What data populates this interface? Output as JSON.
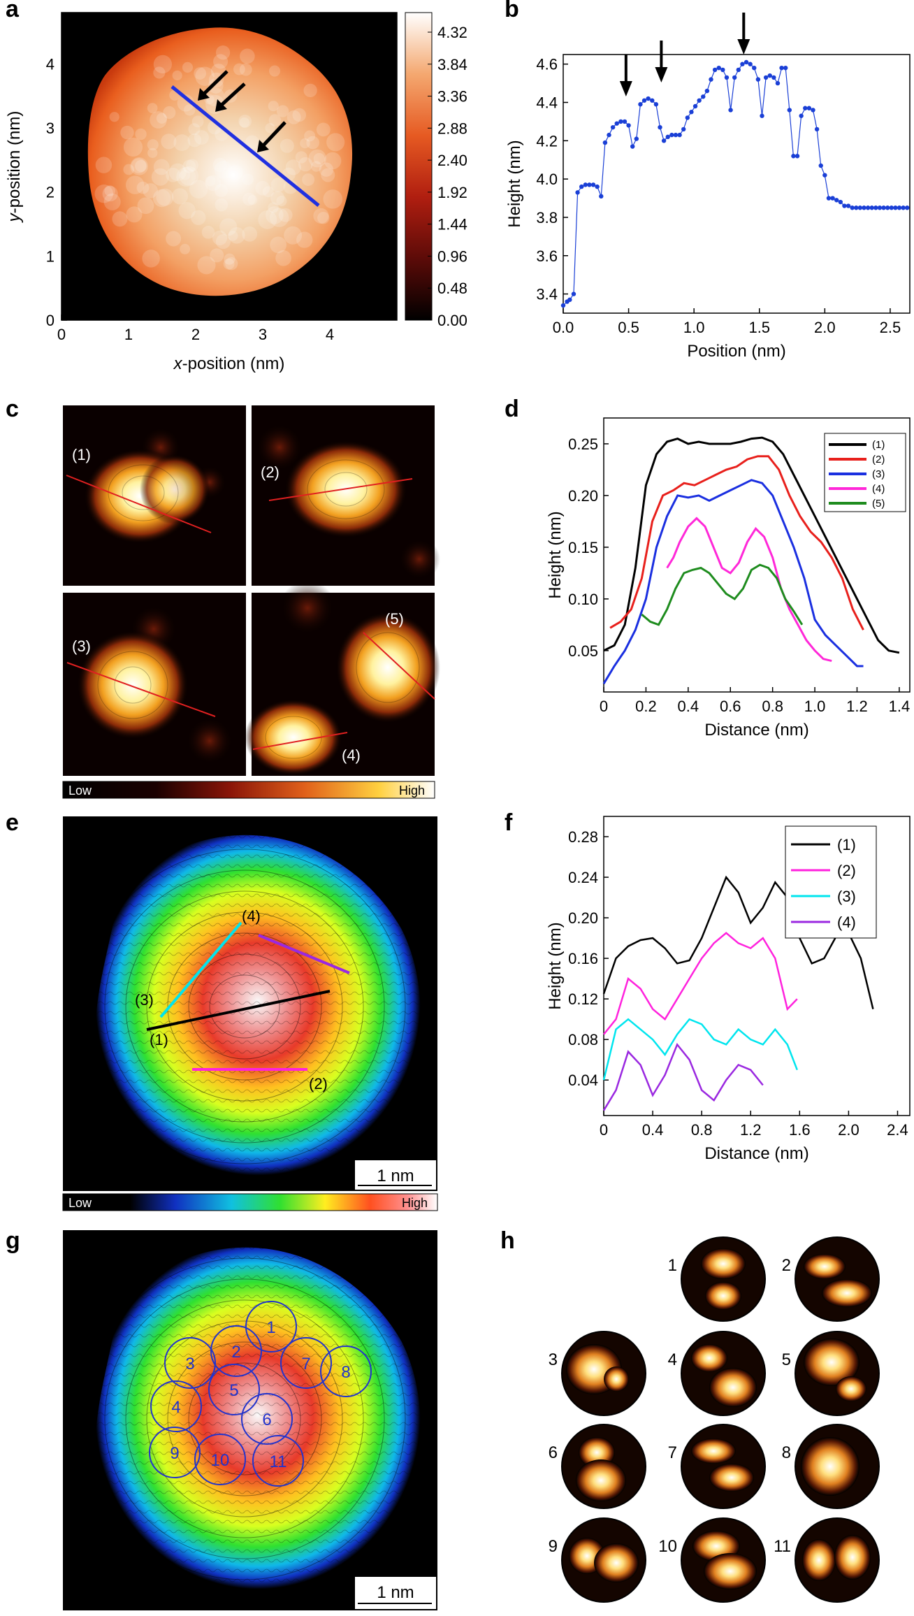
{
  "panels": {
    "a": {
      "label": "a",
      "xlabel_italic": "x",
      "xlabel_rest": "-position (nm)",
      "ylabel_italic": "y",
      "ylabel_rest": "-position (nm)",
      "xticks": [
        "0",
        "1",
        "2",
        "3",
        "4"
      ],
      "yticks": [
        "0",
        "1",
        "2",
        "3",
        "4"
      ],
      "colorbar_ticks": [
        "4.32",
        "3.84",
        "3.36",
        "2.88",
        "2.40",
        "1.92",
        "1.44",
        "0.96",
        "0.48",
        "0.00"
      ]
    },
    "b": {
      "label": "b"
    },
    "c": {
      "label": "c",
      "line_labels": [
        "(1)",
        "(2)",
        "(3)",
        "(5)",
        "(4)"
      ],
      "colorbar_low": "Low",
      "colorbar_high": "High"
    },
    "d": {
      "label": "d"
    },
    "e": {
      "label": "e",
      "line_labels": [
        "(4)",
        "(3)",
        "(1)",
        "(2)"
      ],
      "scalebar": "1 nm",
      "colorbar_low": "Low",
      "colorbar_high": "High"
    },
    "f": {
      "label": "f"
    },
    "g": {
      "label": "g",
      "circle_labels": [
        "1",
        "2",
        "3",
        "4",
        "5",
        "6",
        "7",
        "8",
        "9",
        "10",
        "11"
      ],
      "scalebar": "1 nm"
    },
    "h": {
      "label": "h",
      "numbers": [
        "1",
        "2",
        "3",
        "4",
        "5",
        "6",
        "7",
        "8",
        "9",
        "10",
        "11"
      ]
    }
  },
  "colors": {
    "panel_b_line": "#1a3fd6",
    "panel_a_profile": "#2030e0",
    "panel_c_profile": "#e02020",
    "panel_g_circles": "#2233cc"
  },
  "chart_data": [
    {
      "id": "b",
      "type": "line",
      "xlabel": "Position (nm)",
      "ylabel": "Height (nm)",
      "xlim": [
        0,
        2.65
      ],
      "ylim": [
        3.3,
        4.65
      ],
      "xticks": [
        "0.0",
        "0.5",
        "1.0",
        "1.5",
        "2.0",
        "2.5"
      ],
      "yticks": [
        "3.4",
        "3.6",
        "3.8",
        "4.0",
        "4.2",
        "4.4",
        "4.6"
      ],
      "arrows_at_x": [
        0.48,
        0.75,
        1.38
      ],
      "series": [
        {
          "x": [
            0.0,
            0.03,
            0.05,
            0.08,
            0.11,
            0.14,
            0.17,
            0.2,
            0.23,
            0.26,
            0.29,
            0.32,
            0.35,
            0.38,
            0.41,
            0.44,
            0.47,
            0.5,
            0.53,
            0.56,
            0.59,
            0.62,
            0.65,
            0.68,
            0.71,
            0.74,
            0.77,
            0.8,
            0.83,
            0.86,
            0.89,
            0.92,
            0.95,
            0.98,
            1.01,
            1.04,
            1.07,
            1.1,
            1.13,
            1.16,
            1.19,
            1.22,
            1.25,
            1.28,
            1.31,
            1.34,
            1.37,
            1.4,
            1.43,
            1.46,
            1.49,
            1.52,
            1.55,
            1.58,
            1.61,
            1.64,
            1.67,
            1.7,
            1.73,
            1.76,
            1.79,
            1.82,
            1.85,
            1.88,
            1.91,
            1.94,
            1.97,
            2.0,
            2.03,
            2.06,
            2.09,
            2.12,
            2.15,
            2.18,
            2.21,
            2.24,
            2.27,
            2.3,
            2.33,
            2.36,
            2.39,
            2.42,
            2.45,
            2.48,
            2.51,
            2.54,
            2.57,
            2.6,
            2.63
          ],
          "y": [
            3.34,
            3.36,
            3.37,
            3.4,
            3.93,
            3.96,
            3.97,
            3.97,
            3.97,
            3.96,
            3.91,
            4.19,
            4.23,
            4.27,
            4.29,
            4.3,
            4.3,
            4.28,
            4.17,
            4.21,
            4.39,
            4.41,
            4.42,
            4.41,
            4.39,
            4.27,
            4.2,
            4.22,
            4.23,
            4.23,
            4.23,
            4.26,
            4.32,
            4.35,
            4.38,
            4.41,
            4.43,
            4.46,
            4.52,
            4.57,
            4.58,
            4.57,
            4.53,
            4.36,
            4.53,
            4.57,
            4.6,
            4.61,
            4.6,
            4.58,
            4.52,
            4.33,
            4.53,
            4.54,
            4.53,
            4.5,
            4.58,
            4.58,
            4.36,
            4.12,
            4.12,
            4.33,
            4.37,
            4.37,
            4.36,
            4.26,
            4.07,
            4.02,
            3.9,
            3.9,
            3.89,
            3.88,
            3.86,
            3.86,
            3.85,
            3.85,
            3.85,
            3.85,
            3.85,
            3.85,
            3.85,
            3.85,
            3.85,
            3.85,
            3.85,
            3.85,
            3.85,
            3.85,
            3.85
          ]
        }
      ]
    },
    {
      "id": "d",
      "type": "line",
      "xlabel": "Distance (nm)",
      "ylabel": "Height (nm)",
      "xlim": [
        0,
        1.45
      ],
      "ylim": [
        0.01,
        0.275
      ],
      "xticks": [
        "0",
        "0.2",
        "0.4",
        "0.6",
        "0.8",
        "1.0",
        "1.2",
        "1.4"
      ],
      "yticks": [
        "0.05",
        "0.10",
        "0.15",
        "0.20",
        "0.25"
      ],
      "series": [
        {
          "name": "(1)",
          "color": "#000000",
          "x": [
            0,
            0.05,
            0.1,
            0.15,
            0.2,
            0.25,
            0.3,
            0.35,
            0.4,
            0.45,
            0.5,
            0.55,
            0.6,
            0.65,
            0.7,
            0.75,
            0.8,
            0.85,
            0.9,
            0.95,
            1.0,
            1.05,
            1.1,
            1.15,
            1.2,
            1.25,
            1.3,
            1.35,
            1.4
          ],
          "y": [
            0.05,
            0.055,
            0.075,
            0.13,
            0.21,
            0.24,
            0.252,
            0.255,
            0.25,
            0.252,
            0.25,
            0.25,
            0.25,
            0.252,
            0.255,
            0.256,
            0.252,
            0.24,
            0.22,
            0.2,
            0.18,
            0.16,
            0.14,
            0.12,
            0.1,
            0.08,
            0.06,
            0.05,
            0.048
          ]
        },
        {
          "name": "(2)",
          "color": "#e8201c",
          "x": [
            0.03,
            0.08,
            0.13,
            0.18,
            0.23,
            0.28,
            0.33,
            0.38,
            0.43,
            0.48,
            0.53,
            0.58,
            0.63,
            0.68,
            0.73,
            0.78,
            0.83,
            0.88,
            0.93,
            0.98,
            1.03,
            1.08,
            1.13,
            1.18,
            1.23
          ],
          "y": [
            0.072,
            0.078,
            0.09,
            0.12,
            0.175,
            0.2,
            0.205,
            0.212,
            0.21,
            0.215,
            0.22,
            0.225,
            0.228,
            0.235,
            0.238,
            0.238,
            0.225,
            0.2,
            0.18,
            0.165,
            0.155,
            0.14,
            0.12,
            0.09,
            0.07
          ]
        },
        {
          "name": "(3)",
          "color": "#1a2fe0",
          "x": [
            0.0,
            0.05,
            0.1,
            0.15,
            0.2,
            0.25,
            0.3,
            0.35,
            0.4,
            0.45,
            0.5,
            0.55,
            0.6,
            0.65,
            0.7,
            0.75,
            0.8,
            0.85,
            0.9,
            0.95,
            1.0,
            1.05,
            1.1,
            1.15,
            1.2,
            1.23
          ],
          "y": [
            0.018,
            0.035,
            0.05,
            0.07,
            0.1,
            0.15,
            0.18,
            0.2,
            0.198,
            0.2,
            0.195,
            0.2,
            0.205,
            0.21,
            0.215,
            0.212,
            0.2,
            0.175,
            0.15,
            0.12,
            0.08,
            0.065,
            0.055,
            0.045,
            0.035,
            0.035
          ]
        },
        {
          "name": "(4)",
          "color": "#ff28d8",
          "x": [
            0.3,
            0.33,
            0.36,
            0.4,
            0.44,
            0.48,
            0.52,
            0.56,
            0.6,
            0.64,
            0.68,
            0.72,
            0.76,
            0.8,
            0.84,
            0.88,
            0.92,
            0.96,
            1.0,
            1.04,
            1.08
          ],
          "y": [
            0.13,
            0.14,
            0.155,
            0.17,
            0.178,
            0.17,
            0.15,
            0.13,
            0.125,
            0.135,
            0.155,
            0.168,
            0.16,
            0.14,
            0.11,
            0.09,
            0.075,
            0.06,
            0.05,
            0.042,
            0.04
          ]
        },
        {
          "name": "(5)",
          "color": "#1e8c1e",
          "x": [
            0.18,
            0.22,
            0.26,
            0.3,
            0.34,
            0.38,
            0.42,
            0.46,
            0.5,
            0.54,
            0.58,
            0.62,
            0.66,
            0.7,
            0.74,
            0.78,
            0.82,
            0.86,
            0.9,
            0.94
          ],
          "y": [
            0.085,
            0.078,
            0.075,
            0.09,
            0.11,
            0.125,
            0.128,
            0.13,
            0.125,
            0.115,
            0.105,
            0.1,
            0.11,
            0.128,
            0.133,
            0.13,
            0.12,
            0.1,
            0.088,
            0.075
          ]
        }
      ]
    },
    {
      "id": "f",
      "type": "line",
      "xlabel": "Distance (nm)",
      "ylabel": "Height (nm)",
      "xlim": [
        0,
        2.5
      ],
      "ylim": [
        0.005,
        0.3
      ],
      "xticks": [
        "0",
        "0.4",
        "0.8",
        "1.2",
        "1.6",
        "2.0",
        "2.4"
      ],
      "yticks": [
        "0.04",
        "0.08",
        "0.12",
        "0.16",
        "0.20",
        "0.24",
        "0.28"
      ],
      "series": [
        {
          "name": "(1)",
          "color": "#000000",
          "x": [
            0,
            0.1,
            0.2,
            0.3,
            0.4,
            0.5,
            0.6,
            0.7,
            0.8,
            0.9,
            1.0,
            1.1,
            1.2,
            1.3,
            1.4,
            1.5,
            1.6,
            1.7,
            1.8,
            1.9,
            2.0,
            2.1,
            2.2
          ],
          "y": [
            0.125,
            0.16,
            0.172,
            0.178,
            0.18,
            0.17,
            0.155,
            0.158,
            0.18,
            0.21,
            0.24,
            0.225,
            0.195,
            0.21,
            0.235,
            0.22,
            0.18,
            0.155,
            0.16,
            0.182,
            0.185,
            0.16,
            0.11
          ]
        },
        {
          "name": "(2)",
          "color": "#ff22dd",
          "x": [
            0,
            0.1,
            0.2,
            0.3,
            0.4,
            0.5,
            0.6,
            0.7,
            0.8,
            0.9,
            1.0,
            1.1,
            1.2,
            1.25,
            1.3,
            1.4,
            1.5,
            1.58
          ],
          "y": [
            0.085,
            0.1,
            0.14,
            0.13,
            0.11,
            0.1,
            0.12,
            0.14,
            0.16,
            0.175,
            0.185,
            0.175,
            0.17,
            0.175,
            0.18,
            0.16,
            0.11,
            0.12
          ]
        },
        {
          "name": "(3)",
          "color": "#00e5ee",
          "x": [
            0,
            0.1,
            0.2,
            0.3,
            0.4,
            0.5,
            0.6,
            0.7,
            0.8,
            0.9,
            1.0,
            1.1,
            1.2,
            1.3,
            1.4,
            1.5,
            1.58
          ],
          "y": [
            0.04,
            0.09,
            0.1,
            0.09,
            0.08,
            0.065,
            0.085,
            0.1,
            0.095,
            0.08,
            0.075,
            0.09,
            0.08,
            0.075,
            0.09,
            0.075,
            0.05
          ]
        },
        {
          "name": "(4)",
          "color": "#9a28e0",
          "x": [
            0,
            0.1,
            0.2,
            0.3,
            0.4,
            0.5,
            0.6,
            0.7,
            0.8,
            0.9,
            1.0,
            1.1,
            1.2,
            1.3
          ],
          "y": [
            0.01,
            0.03,
            0.068,
            0.055,
            0.025,
            0.045,
            0.075,
            0.06,
            0.03,
            0.02,
            0.04,
            0.055,
            0.05,
            0.035
          ]
        }
      ]
    }
  ]
}
